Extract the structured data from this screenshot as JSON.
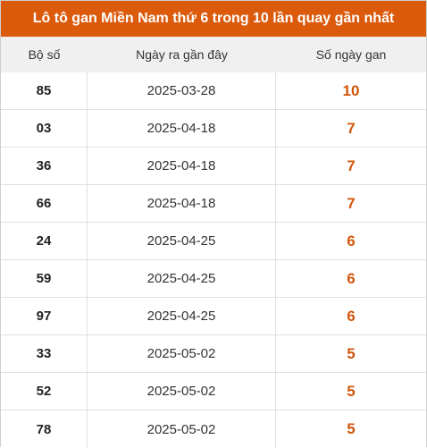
{
  "title": "Lô tô gan Miền Nam thứ 6 trong 10 lần quay gần nhất",
  "colors": {
    "accent": "#db5a0c",
    "gan_value": "#d2570d",
    "header_bg": "#f0f0f0"
  },
  "table": {
    "headers": [
      "Bộ số",
      "Ngày ra gần đây",
      "Số ngày gan"
    ],
    "rows": [
      {
        "number": "85",
        "date": "2025-03-28",
        "days": "10"
      },
      {
        "number": "03",
        "date": "2025-04-18",
        "days": "7"
      },
      {
        "number": "36",
        "date": "2025-04-18",
        "days": "7"
      },
      {
        "number": "66",
        "date": "2025-04-18",
        "days": "7"
      },
      {
        "number": "24",
        "date": "2025-04-25",
        "days": "6"
      },
      {
        "number": "59",
        "date": "2025-04-25",
        "days": "6"
      },
      {
        "number": "97",
        "date": "2025-04-25",
        "days": "6"
      },
      {
        "number": "33",
        "date": "2025-05-02",
        "days": "5"
      },
      {
        "number": "52",
        "date": "2025-05-02",
        "days": "5"
      },
      {
        "number": "78",
        "date": "2025-05-02",
        "days": "5"
      }
    ]
  }
}
